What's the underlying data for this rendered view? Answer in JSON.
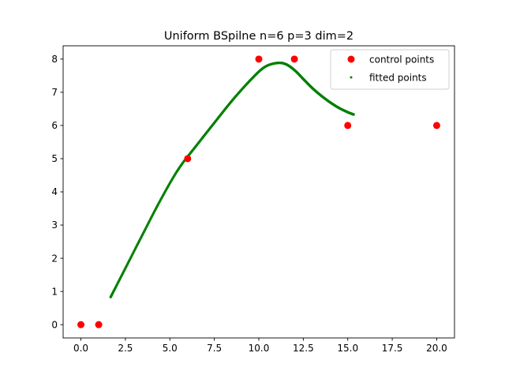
{
  "chart_data": {
    "type": "scatter",
    "title": "Uniform BSpilne n=6 p=3 dim=2",
    "xlabel": "",
    "ylabel": "",
    "xlim": [
      -1.0,
      21.0
    ],
    "ylim": [
      -0.4,
      8.4
    ],
    "xticks": [
      0.0,
      2.5,
      5.0,
      7.5,
      10.0,
      12.5,
      15.0,
      17.5,
      20.0
    ],
    "xtick_labels": [
      "0.0",
      "2.5",
      "5.0",
      "7.5",
      "10.0",
      "12.5",
      "15.0",
      "17.5",
      "20.0"
    ],
    "yticks": [
      0,
      1,
      2,
      3,
      4,
      5,
      6,
      7,
      8
    ],
    "ytick_labels": [
      "0",
      "1",
      "2",
      "3",
      "4",
      "5",
      "6",
      "7",
      "8"
    ],
    "grid": false,
    "legend_position": "top-right",
    "series": [
      {
        "name": "control points",
        "color": "#ff0000",
        "marker": "circle-large",
        "x": [
          0,
          1,
          6,
          10,
          12,
          15,
          20
        ],
        "y": [
          0,
          0,
          5,
          8,
          8,
          6,
          6
        ]
      },
      {
        "name": "fitted points",
        "color": "#008000",
        "marker": "circle-small",
        "x": [
          1.67,
          2.5,
          3.5,
          4.5,
          5.5,
          6.5,
          7.5,
          8.5,
          9.5,
          10.3,
          11.0,
          11.5,
          12.0,
          12.5,
          13.0,
          13.5,
          14.0,
          14.5,
          15.0,
          15.33
        ],
        "y": [
          0.83,
          1.7,
          2.75,
          3.78,
          4.7,
          5.4,
          6.08,
          6.75,
          7.35,
          7.75,
          7.88,
          7.85,
          7.67,
          7.4,
          7.13,
          6.9,
          6.7,
          6.53,
          6.4,
          6.33
        ]
      }
    ]
  }
}
